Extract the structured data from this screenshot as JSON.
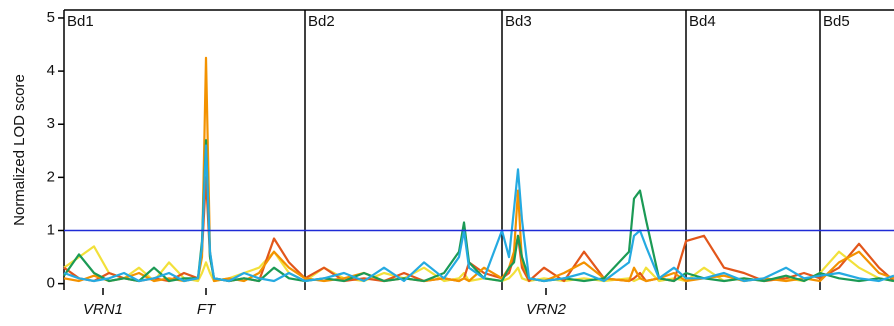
{
  "chart_data": {
    "type": "line",
    "ylabel": "Normalized LOD score",
    "ylim": [
      -0.12,
      5.15
    ],
    "yticks": [
      0,
      1,
      2,
      3,
      4,
      5
    ],
    "xlim": [
      0,
      830
    ],
    "panels": [
      {
        "label": "Bd1",
        "start": 0
      },
      {
        "label": "Bd2",
        "start": 241
      },
      {
        "label": "Bd3",
        "start": 438
      },
      {
        "label": "Bd4",
        "start": 622
      },
      {
        "label": "Bd5",
        "start": 756
      }
    ],
    "threshold": {
      "value": 1,
      "color": "#1f2bd6"
    },
    "annotations": [
      {
        "label": "VRN1",
        "x": 39
      },
      {
        "label": "FT",
        "x": 142
      },
      {
        "label": "VRN2",
        "x": 482
      }
    ],
    "x": [
      0,
      15,
      30,
      45,
      60,
      75,
      90,
      105,
      120,
      134,
      138,
      142,
      146,
      150,
      165,
      180,
      195,
      210,
      225,
      241,
      260,
      280,
      300,
      320,
      340,
      360,
      380,
      395,
      400,
      405,
      420,
      438,
      445,
      450,
      454,
      458,
      465,
      480,
      500,
      520,
      540,
      565,
      570,
      576,
      582,
      595,
      610,
      622,
      640,
      660,
      680,
      700,
      722,
      740,
      756,
      775,
      795,
      815,
      830
    ],
    "series": [
      {
        "color": "#f2e03a",
        "values": [
          0.3,
          0.5,
          0.7,
          0.2,
          0.1,
          0.3,
          0.05,
          0.4,
          0.1,
          0.05,
          0.2,
          0.4,
          0.2,
          0.05,
          0.1,
          0.2,
          0.3,
          0.6,
          0.2,
          0.05,
          0.3,
          0.1,
          0.05,
          0.2,
          0.1,
          0.3,
          0.05,
          0.1,
          0.2,
          0.05,
          0.1,
          0.05,
          0.1,
          0.2,
          0.3,
          0.1,
          0.05,
          0.1,
          0.05,
          0.1,
          0.05,
          0.1,
          0.05,
          0.1,
          0.3,
          0.05,
          0.1,
          0.05,
          0.3,
          0.05,
          0.1,
          0.05,
          0.1,
          0.05,
          0.2,
          0.6,
          0.3,
          0.1,
          0.05
        ]
      },
      {
        "color": "#e2561b",
        "values": [
          0.3,
          0.1,
          0.05,
          0.2,
          0.1,
          0.05,
          0.1,
          0.05,
          0.2,
          0.1,
          0.6,
          2.0,
          0.5,
          0.1,
          0.05,
          0.1,
          0.05,
          0.85,
          0.4,
          0.1,
          0.3,
          0.05,
          0.1,
          0.05,
          0.2,
          0.05,
          0.1,
          0.05,
          0.1,
          0.4,
          0.2,
          0.1,
          0.2,
          0.5,
          0.9,
          0.3,
          0.05,
          0.3,
          0.05,
          0.6,
          0.1,
          0.05,
          0.1,
          0.2,
          0.05,
          0.1,
          0.05,
          0.8,
          0.9,
          0.3,
          0.2,
          0.05,
          0.1,
          0.2,
          0.1,
          0.3,
          0.75,
          0.3,
          0.05
        ]
      },
      {
        "color": "#f39200",
        "values": [
          0.1,
          0.05,
          0.15,
          0.05,
          0.1,
          0.2,
          0.05,
          0.1,
          0.05,
          0.1,
          0.5,
          4.25,
          0.6,
          0.05,
          0.1,
          0.05,
          0.2,
          0.6,
          0.3,
          0.1,
          0.05,
          0.1,
          0.2,
          0.05,
          0.1,
          0.05,
          0.1,
          0.05,
          0.1,
          0.05,
          0.3,
          0.1,
          0.3,
          0.6,
          1.75,
          0.4,
          0.1,
          0.05,
          0.2,
          0.4,
          0.1,
          0.05,
          0.3,
          0.1,
          0.05,
          0.1,
          0.2,
          0.05,
          0.1,
          0.15,
          0.05,
          0.1,
          0.05,
          0.1,
          0.05,
          0.4,
          0.6,
          0.2,
          0.1
        ]
      },
      {
        "color": "#1b9a55",
        "values": [
          0.15,
          0.55,
          0.2,
          0.05,
          0.1,
          0.05,
          0.3,
          0.05,
          0.1,
          0.1,
          0.8,
          2.7,
          0.5,
          0.1,
          0.05,
          0.1,
          0.05,
          0.3,
          0.1,
          0.05,
          0.1,
          0.05,
          0.2,
          0.05,
          0.1,
          0.05,
          0.2,
          0.6,
          1.15,
          0.4,
          0.1,
          0.05,
          0.3,
          0.4,
          0.9,
          0.5,
          0.1,
          0.05,
          0.1,
          0.05,
          0.1,
          0.6,
          1.6,
          1.75,
          1.2,
          0.1,
          0.05,
          0.2,
          0.1,
          0.05,
          0.1,
          0.05,
          0.15,
          0.05,
          0.2,
          0.1,
          0.05,
          0.1,
          0.05
        ]
      },
      {
        "color": "#25aae1",
        "values": [
          0.2,
          0.1,
          0.05,
          0.1,
          0.2,
          0.05,
          0.1,
          0.2,
          0.05,
          0.1,
          0.7,
          2.6,
          0.6,
          0.1,
          0.05,
          0.2,
          0.1,
          0.05,
          0.2,
          0.05,
          0.1,
          0.2,
          0.05,
          0.3,
          0.05,
          0.4,
          0.1,
          0.5,
          1.0,
          0.3,
          0.1,
          1.0,
          0.5,
          1.4,
          2.15,
          1.2,
          0.1,
          0.05,
          0.1,
          0.2,
          0.05,
          0.4,
          0.9,
          1.0,
          0.7,
          0.1,
          0.3,
          0.1,
          0.1,
          0.2,
          0.05,
          0.1,
          0.3,
          0.1,
          0.15,
          0.2,
          0.1,
          0.05,
          0.15
        ]
      }
    ]
  }
}
